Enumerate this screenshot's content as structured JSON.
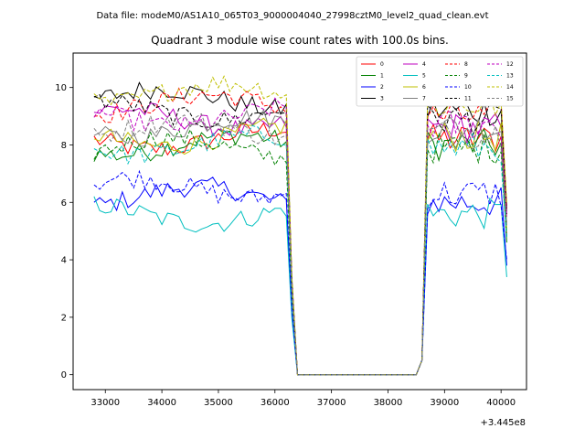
{
  "chart_data": {
    "type": "line",
    "suptitle": "Data file: modeM0/AS1A10_065T03_9000004040_27998cztM0_level2_quad_clean.evt",
    "title": "Quadrant 3 module wise count rates with 100.0s bins.",
    "xlabel": "",
    "ylabel": "",
    "offset_label": "+3.445e8",
    "xlim": [
      32430,
      40450
    ],
    "ylim": [
      -0.52,
      11.2
    ],
    "xticks": [
      33000,
      34000,
      35000,
      36000,
      37000,
      38000,
      39000,
      40000
    ],
    "xtick_labels": [
      "33000",
      "34000",
      "35000",
      "36000",
      "37000",
      "38000",
      "39000",
      "40000"
    ],
    "yticks": [
      0,
      2,
      4,
      6,
      8,
      10
    ],
    "ytick_labels": [
      "0",
      "2",
      "4",
      "6",
      "8",
      "10"
    ],
    "legend_position": "top-right",
    "legend_columns": 4,
    "bin_width": 100,
    "x_start": 32800,
    "segments": {
      "first": {
        "x_start": 32800,
        "x_end": 36200
      },
      "gap": {
        "x_start": 36400,
        "x_end": 38500
      },
      "second": {
        "x_start": 38700,
        "x_end": 40100
      }
    },
    "series": [
      {
        "name": "0",
        "color": "#ff0000",
        "dash": "solid",
        "level1": 8.2,
        "level2": 8.2,
        "end": 4.8
      },
      {
        "name": "1",
        "color": "#008000",
        "dash": "solid",
        "level1": 8.0,
        "level2": 8.0,
        "end": 4.6
      },
      {
        "name": "2",
        "color": "#0000ff",
        "dash": "solid",
        "level1": 6.2,
        "level2": 6.0,
        "end": 3.8
      },
      {
        "name": "3",
        "color": "#000000",
        "dash": "solid",
        "level1": 9.6,
        "level2": 9.2,
        "end": 5.8
      },
      {
        "name": "4",
        "color": "#bf00bf",
        "dash": "solid",
        "level1": 8.9,
        "level2": 8.6,
        "end": 5.6
      },
      {
        "name": "5",
        "color": "#00bfbf",
        "dash": "solid",
        "level1": 5.6,
        "level2": 5.6,
        "end": 3.4
      },
      {
        "name": "6",
        "color": "#bfbf00",
        "dash": "solid",
        "level1": 8.3,
        "level2": 8.3,
        "end": 5.0
      },
      {
        "name": "7",
        "color": "#808080",
        "dash": "solid",
        "level1": 8.6,
        "level2": 8.6,
        "end": 5.2
      },
      {
        "name": "8",
        "color": "#ff0000",
        "dash": "dashed",
        "level1": 9.4,
        "level2": 9.0,
        "end": 5.8
      },
      {
        "name": "9",
        "color": "#008000",
        "dash": "dashed",
        "level1": 7.9,
        "level2": 7.9,
        "end": 4.8
      },
      {
        "name": "10",
        "color": "#0000ff",
        "dash": "dashed",
        "level1": 6.5,
        "level2": 6.3,
        "end": 4.0
      },
      {
        "name": "11",
        "color": "#000000",
        "dash": "dashed",
        "level1": 9.2,
        "level2": 8.9,
        "end": 5.6
      },
      {
        "name": "12",
        "color": "#bf00bf",
        "dash": "dashed",
        "level1": 9.0,
        "level2": 8.7,
        "end": 5.5
      },
      {
        "name": "13",
        "color": "#00bfbf",
        "dash": "dashed",
        "level1": 8.0,
        "level2": 7.9,
        "end": 4.8
      },
      {
        "name": "14",
        "color": "#bfbf00",
        "dash": "dashed",
        "level1": 9.8,
        "level2": 9.4,
        "end": 6.0
      },
      {
        "name": "15",
        "color": "#808080",
        "dash": "dashed",
        "level1": 8.5,
        "level2": 8.4,
        "end": 5.3
      }
    ]
  }
}
